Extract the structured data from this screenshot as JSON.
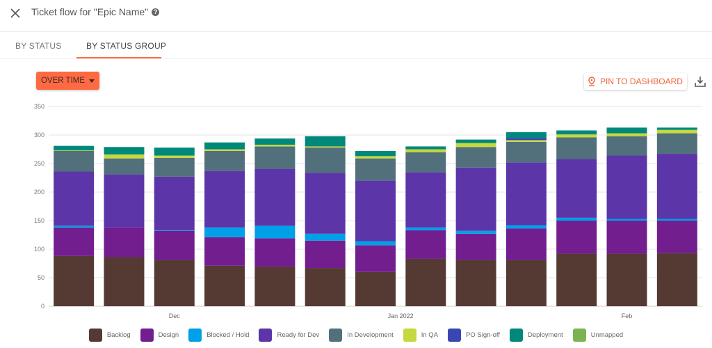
{
  "header": {
    "title": "Ticket flow for \"Epic Name\"",
    "help_icon": "question-circle-icon",
    "close_icon": "close-icon"
  },
  "tabs": [
    {
      "label": "BY STATUS",
      "active": false
    },
    {
      "label": "BY STATUS GROUP",
      "active": true
    }
  ],
  "toolbar": {
    "mode_label": "OVER TIME",
    "pin_label": "PIN TO DASHBOARD",
    "pin_icon": "map-pin-icon",
    "download_icon": "download-icon",
    "accent": "#ff6a42"
  },
  "chart_data": {
    "type": "bar",
    "stacked": true,
    "ylim": [
      0,
      350
    ],
    "y_ticks": [
      0,
      50,
      100,
      150,
      200,
      250,
      300,
      350
    ],
    "grid": true,
    "legend_position": "bottom",
    "x_ticks": [
      {
        "label": "Dec",
        "bar_index": 2
      },
      {
        "label": "Jan 2022",
        "bar_index": 6.5
      },
      {
        "label": "Feb",
        "bar_index": 11
      }
    ],
    "series": [
      {
        "name": "Backlog",
        "color": "#543a33",
        "values": [
          88,
          86,
          81,
          71,
          69,
          67,
          60,
          83,
          81,
          81,
          92,
          92,
          93
        ]
      },
      {
        "name": "Design",
        "color": "#721e8f",
        "values": [
          50,
          52,
          51,
          50,
          50,
          48,
          47,
          50,
          46,
          55,
          58,
          58,
          57
        ]
      },
      {
        "name": "Blocked / Hold",
        "color": "#00a0e9",
        "values": [
          3,
          0,
          1,
          17,
          22,
          12,
          7,
          5,
          5,
          6,
          5,
          3,
          3
        ]
      },
      {
        "name": "Ready for Dev",
        "color": "#5c35a8",
        "values": [
          95,
          93,
          94,
          99,
          100,
          107,
          106,
          97,
          111,
          110,
          103,
          111,
          114
        ]
      },
      {
        "name": "In Development",
        "color": "#52707c",
        "values": [
          36,
          28,
          33,
          35,
          39,
          44,
          39,
          35,
          36,
          36,
          38,
          34,
          36
        ]
      },
      {
        "name": "In QA",
        "color": "#c6d83f",
        "values": [
          1,
          7,
          4,
          3,
          3,
          2,
          4,
          5,
          7,
          3,
          5,
          5,
          6
        ]
      },
      {
        "name": "PO Sign-off",
        "color": "#3a47b3",
        "values": [
          0,
          0,
          0,
          0,
          0,
          0,
          0,
          0,
          0,
          4,
          0,
          0,
          0
        ]
      },
      {
        "name": "Deployment",
        "color": "#00897b",
        "values": [
          8,
          13,
          14,
          12,
          11,
          18,
          9,
          5,
          6,
          10,
          7,
          10,
          4
        ]
      },
      {
        "name": "Unmapped",
        "color": "#7cb352",
        "values": [
          0,
          0,
          0,
          0,
          0,
          0,
          0,
          0,
          0,
          0,
          0,
          0,
          0
        ]
      }
    ]
  }
}
